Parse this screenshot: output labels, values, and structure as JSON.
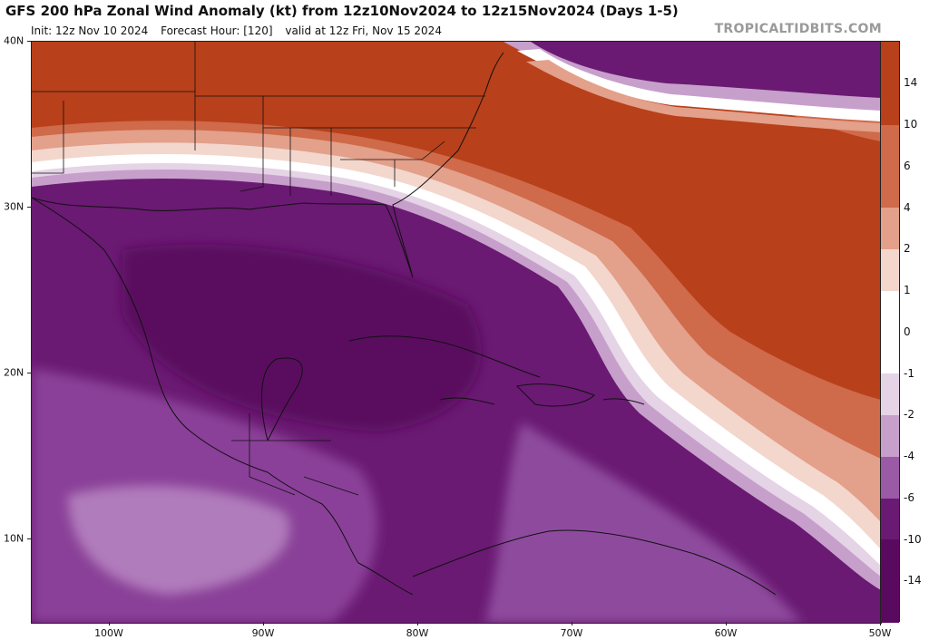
{
  "header": {
    "title": "GFS 200 hPa Zonal Wind Anomaly (kt) from 12z10Nov2024 to 12z15Nov2024 (Days 1-5)",
    "init": "Init: 12z Nov 10 2024",
    "forecast_hour": "Forecast Hour: [120]",
    "valid": "valid at 12z Fri, Nov 15 2024",
    "site": "TROPICALTIDBITS.COM"
  },
  "axes": {
    "lat_labels": [
      "40N",
      "30N",
      "20N",
      "10N"
    ],
    "lon_labels": [
      "100W",
      "90W",
      "80W",
      "70W",
      "60W",
      "50W"
    ]
  },
  "colorbar": {
    "labels": [
      "14",
      "10",
      "6",
      "4",
      "2",
      "1",
      "0",
      "-1",
      "-2",
      "-4",
      "-6",
      "-10",
      "-14"
    ],
    "colors": {
      "strong_positive": "#b8401a",
      "positive": "#cf6a4a",
      "weak_positive": "#e3a08a",
      "near_zero_pos": "#f3d6cc",
      "zero": "#ffffff",
      "near_zero_neg": "#e5d3e6",
      "weak_negative": "#c79fcb",
      "negative": "#9a5aa6",
      "strong_negative": "#6a1a72",
      "very_strong_negative": "#5a0a5e"
    }
  }
}
